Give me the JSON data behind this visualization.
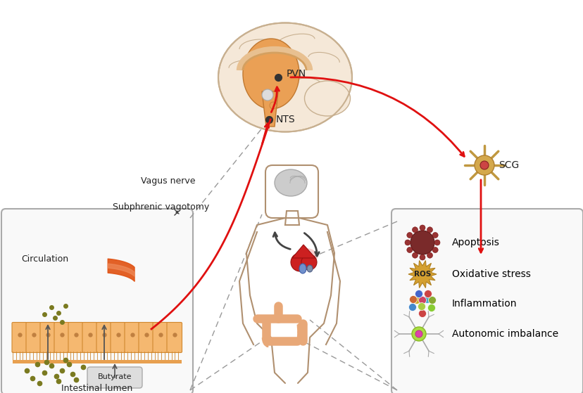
{
  "bg_color": "#ffffff",
  "brain_outer_color": "#f5e8d8",
  "brain_outer_stroke": "#c8b090",
  "brain_inner_color": "#f0c090",
  "brain_stem_color": "#f0c090",
  "pvn_label": "PVN",
  "nts_label": "NTS",
  "scg_label": "SCG",
  "vagus_label": "Vagus nerve",
  "vagotomy_label": "Subphrenic vagotomy",
  "circulation_label": "Circulation",
  "butyrate_label": "Butyrate",
  "intestinal_label": "Intestinal lumen",
  "apoptosis_label": "Apoptosis",
  "ros_label_text": "ROS",
  "oxidative_label": "Oxidative stress",
  "inflammation_label": "Inflammation",
  "autonomic_label": "Autonomic imbalance",
  "red_color": "#e01010",
  "dark_arrow_color": "#444444",
  "dash_color": "#999999",
  "cell_color": "#f5b870",
  "cell_stroke": "#d08830",
  "butyrate_dot_color": "#7a7a20",
  "blood_vessel_color": "#e05010",
  "body_outline_color": "#b09070",
  "figsize": [
    8.29,
    5.59
  ],
  "dpi": 100
}
